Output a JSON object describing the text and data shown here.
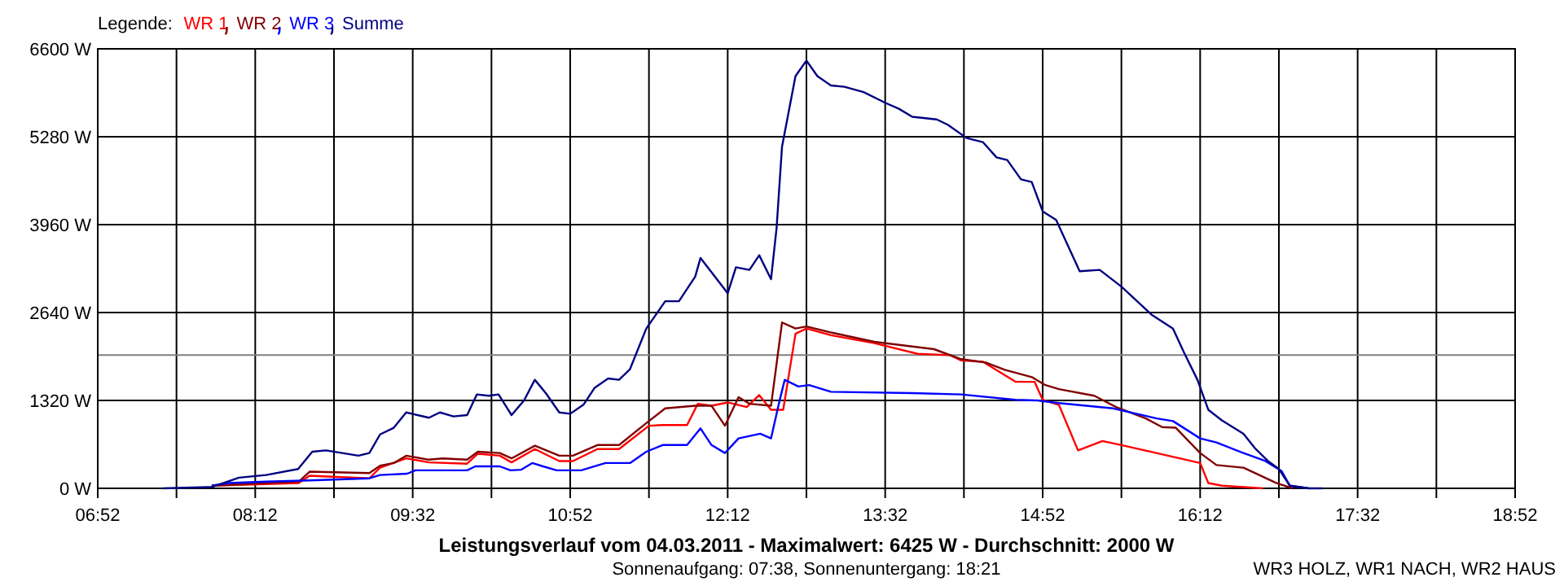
{
  "chart_data": {
    "type": "line",
    "title": "Leistungsverlauf vom 04.03.2011 - Maximalwert: 6425 W - Durchschnitt: 2000 W",
    "subtitle": "Sonnenaufgang: 07:38, Sonnenuntergang: 18:21",
    "annotations": [
      "WR3 HOLZ, WR1 NACH, WR2 HAUS"
    ],
    "legend_title": "Legende:",
    "legend": "top left",
    "grid": true,
    "marker": "none",
    "line_style": "solid",
    "xlim": [
      6.8667,
      18.8667
    ],
    "xticks": [
      {
        "value": 6.8667,
        "label": "06:52"
      },
      {
        "value": 7.5333,
        "label": null
      },
      {
        "value": 8.2,
        "label": "08:12"
      },
      {
        "value": 8.8667,
        "label": null
      },
      {
        "value": 9.5333,
        "label": "09:32"
      },
      {
        "value": 10.2,
        "label": null
      },
      {
        "value": 10.8667,
        "label": "10:52"
      },
      {
        "value": 11.5333,
        "label": null
      },
      {
        "value": 12.2,
        "label": "12:12"
      },
      {
        "value": 12.8667,
        "label": null
      },
      {
        "value": 13.5333,
        "label": "13:32"
      },
      {
        "value": 14.2,
        "label": null
      },
      {
        "value": 14.8667,
        "label": "14:52"
      },
      {
        "value": 15.5333,
        "label": null
      },
      {
        "value": 16.2,
        "label": "16:12"
      },
      {
        "value": 16.8667,
        "label": null
      },
      {
        "value": 17.5333,
        "label": "17:32"
      },
      {
        "value": 18.2,
        "label": null
      },
      {
        "value": 18.8667,
        "label": "18:52"
      }
    ],
    "ylim": [
      0,
      6600
    ],
    "yticks": [
      {
        "value": 0,
        "label": "0 W"
      },
      {
        "value": 1320,
        "label": "1320 W"
      },
      {
        "value": 2640,
        "label": "2640 W"
      },
      {
        "value": 3960,
        "label": "3960 W"
      },
      {
        "value": 5280,
        "label": "5280 W"
      },
      {
        "value": 6600,
        "label": "6600 W"
      }
    ],
    "ref_lines": [
      {
        "axis": "y",
        "value": 2000,
        "color": "#808080"
      }
    ],
    "series": [
      {
        "name": "WR 1",
        "color": "#ff0000",
        "x": [
          7.832,
          8.568,
          8.66,
          9.166,
          9.257,
          9.478,
          9.671,
          9.994,
          10.085,
          10.27,
          10.37,
          10.568,
          10.774,
          10.89,
          11.097,
          11.28,
          11.533,
          11.649,
          11.856,
          11.947,
          12.063,
          12.2,
          12.361,
          12.467,
          12.567,
          12.67,
          12.774,
          12.867,
          13.074,
          13.442,
          13.809,
          14.085,
          14.177,
          14.361,
          14.637,
          14.798,
          14.867,
          15.005,
          15.166,
          15.373,
          15.557,
          16.2,
          16.269,
          16.384,
          16.729
        ],
        "values": [
          40,
          80,
          190,
          150,
          310,
          450,
          390,
          370,
          520,
          490,
          390,
          590,
          410,
          410,
          590,
          590,
          940,
          950,
          950,
          1270,
          1240,
          1290,
          1220,
          1400,
          1180,
          1180,
          2320,
          2400,
          2300,
          2180,
          2020,
          2000,
          1920,
          1900,
          1600,
          1600,
          1330,
          1250,
          570,
          710,
          640,
          380,
          80,
          40,
          0
        ]
      },
      {
        "name": "WR 2",
        "color": "#800000",
        "x": [
          7.832,
          8.292,
          8.568,
          8.66,
          9.166,
          9.257,
          9.373,
          9.478,
          9.671,
          9.787,
          9.994,
          10.085,
          10.27,
          10.37,
          10.568,
          10.774,
          10.89,
          11.097,
          11.28,
          11.511,
          11.671,
          11.925,
          12.063,
          12.177,
          12.292,
          12.384,
          12.567,
          12.66,
          12.774,
          12.867,
          13.074,
          13.442,
          13.947,
          14.177,
          14.384,
          14.546,
          14.775,
          14.89,
          15.005,
          15.304,
          15.488,
          15.74,
          15.878,
          15.994,
          16.2,
          16.338,
          16.567,
          16.844,
          16.981
        ],
        "values": [
          40,
          80,
          100,
          250,
          230,
          340,
          380,
          490,
          430,
          450,
          430,
          550,
          530,
          450,
          640,
          490,
          490,
          650,
          650,
          980,
          1200,
          1240,
          1240,
          940,
          1370,
          1270,
          1240,
          2490,
          2400,
          2430,
          2340,
          2200,
          2090,
          1940,
          1890,
          1780,
          1670,
          1550,
          1490,
          1390,
          1220,
          1050,
          920,
          910,
          530,
          350,
          310,
          80,
          0
        ]
      },
      {
        "name": "WR 3",
        "color": "#0000ff",
        "x": [
          7.832,
          7.97,
          8.292,
          8.66,
          9.166,
          9.257,
          9.487,
          9.556,
          9.994,
          10.063,
          10.27,
          10.361,
          10.453,
          10.545,
          10.637,
          10.752,
          10.959,
          11.166,
          11.373,
          11.511,
          11.649,
          11.856,
          11.97,
          12.063,
          12.177,
          12.292,
          12.476,
          12.567,
          12.637,
          12.683,
          12.798,
          12.89,
          13.074,
          13.763,
          14.177,
          14.637,
          14.821,
          15.005,
          15.464,
          15.832,
          15.97,
          16.2,
          16.338,
          16.567,
          16.752,
          16.89,
          16.959,
          17.119
        ],
        "values": [
          40,
          80,
          100,
          120,
          150,
          200,
          220,
          270,
          270,
          330,
          330,
          270,
          280,
          380,
          330,
          270,
          270,
          380,
          380,
          550,
          650,
          650,
          900,
          650,
          530,
          750,
          820,
          750,
          1300,
          1630,
          1530,
          1550,
          1450,
          1430,
          1410,
          1330,
          1320,
          1280,
          1200,
          1050,
          1010,
          750,
          690,
          530,
          410,
          260,
          40,
          0
        ]
      },
      {
        "name": "Summe",
        "color": "#000080",
        "x": [
          7.418,
          7.832,
          8.063,
          8.292,
          8.563,
          8.683,
          8.798,
          9.074,
          9.166,
          9.257,
          9.373,
          9.478,
          9.671,
          9.763,
          9.878,
          9.994,
          10.076,
          10.177,
          10.26,
          10.37,
          10.476,
          10.567,
          10.66,
          10.774,
          10.867,
          10.981,
          11.074,
          11.188,
          11.28,
          11.373,
          11.511,
          11.671,
          11.787,
          11.925,
          11.97,
          12.2,
          12.27,
          12.384,
          12.467,
          12.567,
          12.614,
          12.66,
          12.774,
          12.867,
          12.959,
          13.074,
          13.188,
          13.35,
          13.533,
          13.649,
          13.763,
          13.97,
          14.063,
          14.223,
          14.36,
          14.476,
          14.567,
          14.683,
          14.774,
          14.867,
          14.981,
          15.074,
          15.18,
          15.35,
          15.533,
          15.787,
          15.97,
          16.063,
          16.177,
          16.269,
          16.384,
          16.567,
          16.66,
          16.774,
          16.867,
          16.959,
          17.119,
          17.235
        ],
        "values": [
          0,
          20,
          160,
          200,
          290,
          550,
          570,
          490,
          530,
          810,
          910,
          1140,
          1060,
          1140,
          1080,
          1100,
          1410,
          1390,
          1410,
          1100,
          1320,
          1630,
          1430,
          1140,
          1120,
          1260,
          1510,
          1650,
          1630,
          1790,
          2400,
          2810,
          2810,
          3180,
          3460,
          2930,
          3320,
          3280,
          3500,
          3140,
          3910,
          5130,
          6190,
          6425,
          6190,
          6050,
          6030,
          5950,
          5790,
          5700,
          5580,
          5540,
          5460,
          5260,
          5200,
          4970,
          4930,
          4640,
          4600,
          4160,
          4030,
          3670,
          3260,
          3280,
          3030,
          2610,
          2400,
          2040,
          1630,
          1180,
          1020,
          820,
          610,
          410,
          290,
          40,
          0,
          0
        ]
      }
    ]
  }
}
